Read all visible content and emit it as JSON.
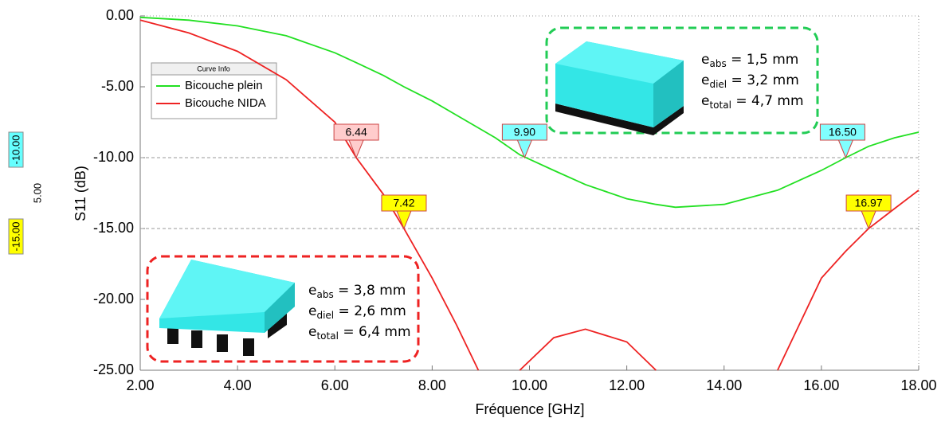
{
  "chart_data": {
    "type": "line",
    "x_label": "Fréquence [GHz]",
    "y_label": "S11 (dB)",
    "x": [
      2,
      3,
      4,
      5,
      6,
      6.44,
      7,
      7.42,
      8,
      8.5,
      8.95,
      9.3,
      9.8,
      10.5,
      11.15,
      12,
      12.6,
      13,
      14,
      15.1,
      16,
      16.5,
      16.97,
      17.5,
      18
    ],
    "series": [
      {
        "name": "Bicouche plein",
        "color": "#22e022",
        "values": [
          -0.1,
          -0.3,
          -0.7,
          -1.4,
          -2.6,
          -3.3,
          -4.2,
          -5.0,
          -6.0,
          -7.0,
          -7.9,
          -8.6,
          -9.8,
          -10.9,
          -11.9,
          -12.9,
          -13.3,
          -13.5,
          -13.3,
          -12.3,
          -10.9,
          -10.0,
          -9.2,
          -8.6,
          -8.2
        ]
      },
      {
        "name": "Bicouche NIDA",
        "color": "#ee2222",
        "values": [
          -0.3,
          -1.2,
          -2.5,
          -4.5,
          -7.5,
          -10,
          -12.6,
          -15,
          -18.5,
          -21.8,
          -25,
          null,
          -25,
          -22.7,
          -22.1,
          -23.0,
          -25,
          null,
          null,
          -25,
          -18.5,
          -16.6,
          -15,
          -13.6,
          -12.3
        ]
      }
    ],
    "xlim": [
      2,
      18
    ],
    "ylim": [
      -25,
      0
    ],
    "xticks": [
      {
        "value": 2,
        "label": "2.00"
      },
      {
        "value": 4,
        "label": "4.00"
      },
      {
        "value": 6,
        "label": "6.00"
      },
      {
        "value": 8,
        "label": "8.00"
      },
      {
        "value": 10,
        "label": "10.00"
      },
      {
        "value": 12,
        "label": "12.00"
      },
      {
        "value": 14,
        "label": "14.00"
      },
      {
        "value": 16,
        "label": "16.00"
      },
      {
        "value": 18,
        "label": "18.00"
      }
    ],
    "yticks": [
      {
        "value": 0,
        "label": "0.00"
      },
      {
        "value": -5,
        "label": "-5.00"
      },
      {
        "value": -10,
        "label": "-10.00"
      },
      {
        "value": -15,
        "label": "-15.00"
      },
      {
        "value": -20,
        "label": "-20.00"
      },
      {
        "value": -25,
        "label": "-25.00"
      }
    ],
    "grid": false,
    "legend_title": "Curve Info",
    "ref_lines": {
      "values": [
        -10,
        -15
      ],
      "value_labels": [
        "-10.00",
        "-15.00"
      ],
      "colors": [
        "#66ffff",
        "#ffff00"
      ]
    },
    "ref_delta": {
      "value": 5,
      "label": "5.00"
    },
    "markers": {
      "x": [
        6.44,
        7.42,
        9.9,
        16.5,
        16.97
      ],
      "y": [
        -10,
        -15,
        -10,
        -10,
        -15
      ],
      "value_labels": [
        "6.44",
        "7.42",
        "9.90",
        "16.50",
        "16.97"
      ],
      "colors": [
        "#ffcccc",
        "#ffff00",
        "#80ffff",
        "#80ffff",
        "#ffff00"
      ]
    },
    "annotations": [
      {
        "color": "#22cc55",
        "lines": [
          {
            "base": "e",
            "sub": "abs",
            "text": " = 1,5 mm"
          },
          {
            "base": "e",
            "sub": "diel",
            "text": " = 3,2 mm"
          },
          {
            "base": "e",
            "sub": "total",
            "text": " = 4,7 mm"
          }
        ]
      },
      {
        "color": "#ee2222",
        "lines": [
          {
            "base": "e",
            "sub": "abs",
            "text": " = 3,8 mm"
          },
          {
            "base": "e",
            "sub": "diel",
            "text": " = 2,6 mm"
          },
          {
            "base": "e",
            "sub": "total",
            "text": " = 6,4 mm"
          }
        ]
      }
    ]
  }
}
